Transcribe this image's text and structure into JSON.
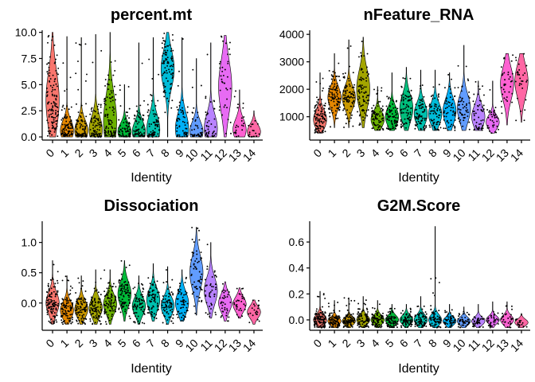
{
  "chart_data": [
    {
      "type": "violin",
      "title": "percent.mt",
      "xlabel": "Identity",
      "ylabel": "",
      "categories": [
        "0",
        "1",
        "2",
        "3",
        "4",
        "5",
        "6",
        "7",
        "8",
        "9",
        "10",
        "11",
        "12",
        "13",
        "14"
      ],
      "colors": [
        "#F8766D",
        "#E58700",
        "#C99800",
        "#A3A500",
        "#6BB100",
        "#00BA38",
        "#00BF7D",
        "#00C0AF",
        "#00BCD8",
        "#00B0F6",
        "#619CFF",
        "#B983FF",
        "#E76BF3",
        "#FD61D1",
        "#FF67A4"
      ],
      "ylim": [
        -0.3,
        10.2
      ],
      "yticks": [
        0.0,
        2.5,
        5.0,
        7.5,
        10.0
      ],
      "ytick_labels": [
        "0.0",
        "2.5",
        "5.0",
        "7.5",
        "10.0"
      ],
      "violins": [
        {
          "median": 3.5,
          "spread": 2.8,
          "min": 0.0,
          "max": 10.0,
          "n": 120
        },
        {
          "median": 0.6,
          "spread": 1.0,
          "min": 0.0,
          "max": 9.6,
          "n": 90
        },
        {
          "median": 0.6,
          "spread": 1.0,
          "min": 0.0,
          "max": 9.5,
          "n": 90
        },
        {
          "median": 0.7,
          "spread": 1.3,
          "min": 0.0,
          "max": 9.8,
          "n": 85
        },
        {
          "median": 1.5,
          "spread": 2.5,
          "min": 0.0,
          "max": 10.0,
          "n": 100
        },
        {
          "median": 0.5,
          "spread": 0.8,
          "min": 0.0,
          "max": 5.0,
          "n": 70
        },
        {
          "median": 0.5,
          "spread": 1.0,
          "min": 0.0,
          "max": 9.0,
          "n": 70
        },
        {
          "median": 0.7,
          "spread": 1.4,
          "min": 0.0,
          "max": 9.5,
          "n": 70
        },
        {
          "median": 6.5,
          "spread": 1.8,
          "min": 0.0,
          "max": 10.0,
          "n": 90
        },
        {
          "median": 0.8,
          "spread": 1.5,
          "min": 0.0,
          "max": 9.5,
          "n": 55
        },
        {
          "median": 0.5,
          "spread": 1.0,
          "min": 0.0,
          "max": 7.5,
          "n": 45
        },
        {
          "median": 0.8,
          "spread": 1.4,
          "min": 0.0,
          "max": 9.0,
          "n": 45
        },
        {
          "median": 4.8,
          "spread": 2.5,
          "min": 0.0,
          "max": 9.7,
          "n": 40
        },
        {
          "median": 0.7,
          "spread": 1.0,
          "min": 0.0,
          "max": 4.5,
          "n": 25
        },
        {
          "median": 0.5,
          "spread": 0.7,
          "min": 0.0,
          "max": 2.5,
          "n": 20
        }
      ]
    },
    {
      "type": "violin",
      "title": "nFeature_RNA",
      "xlabel": "Identity",
      "ylabel": "",
      "categories": [
        "0",
        "1",
        "2",
        "3",
        "4",
        "5",
        "6",
        "7",
        "8",
        "9",
        "10",
        "11",
        "12",
        "13",
        "14"
      ],
      "colors": [
        "#F8766D",
        "#E58700",
        "#C99800",
        "#A3A500",
        "#6BB100",
        "#00BA38",
        "#00BF7D",
        "#00C0AF",
        "#00BCD8",
        "#00B0F6",
        "#619CFF",
        "#B983FF",
        "#E76BF3",
        "#FD61D1",
        "#FF67A4"
      ],
      "ylim": [
        150,
        4150
      ],
      "yticks": [
        1000,
        2000,
        3000,
        4000
      ],
      "ytick_labels": [
        "1000",
        "2000",
        "3000",
        "4000"
      ],
      "violins": [
        {
          "median": 900,
          "spread": 350,
          "min": 400,
          "max": 2600,
          "n": 110
        },
        {
          "median": 1700,
          "spread": 400,
          "min": 600,
          "max": 3300,
          "n": 90
        },
        {
          "median": 1700,
          "spread": 400,
          "min": 600,
          "max": 3800,
          "n": 90
        },
        {
          "median": 2000,
          "spread": 700,
          "min": 600,
          "max": 3900,
          "n": 85
        },
        {
          "median": 900,
          "spread": 300,
          "min": 500,
          "max": 2100,
          "n": 80
        },
        {
          "median": 1000,
          "spread": 350,
          "min": 500,
          "max": 2600,
          "n": 75
        },
        {
          "median": 1300,
          "spread": 500,
          "min": 500,
          "max": 2800,
          "n": 75
        },
        {
          "median": 1100,
          "spread": 400,
          "min": 500,
          "max": 2700,
          "n": 70
        },
        {
          "median": 1100,
          "spread": 400,
          "min": 500,
          "max": 2700,
          "n": 70
        },
        {
          "median": 1200,
          "spread": 450,
          "min": 500,
          "max": 2600,
          "n": 60
        },
        {
          "median": 1300,
          "spread": 500,
          "min": 500,
          "max": 3600,
          "n": 55
        },
        {
          "median": 1000,
          "spread": 400,
          "min": 500,
          "max": 2300,
          "n": 50
        },
        {
          "median": 800,
          "spread": 250,
          "min": 400,
          "max": 2300,
          "n": 35
        },
        {
          "median": 2200,
          "spread": 600,
          "min": 700,
          "max": 3300,
          "n": 35
        },
        {
          "median": 2300,
          "spread": 600,
          "min": 800,
          "max": 3300,
          "n": 30
        }
      ]
    },
    {
      "type": "violin",
      "title": "Dissociation",
      "xlabel": "Identity",
      "ylabel": "",
      "categories": [
        "0",
        "1",
        "2",
        "3",
        "4",
        "5",
        "6",
        "7",
        "8",
        "9",
        "10",
        "11",
        "12",
        "13",
        "14"
      ],
      "colors": [
        "#F8766D",
        "#E58700",
        "#C99800",
        "#A3A500",
        "#6BB100",
        "#00BA38",
        "#00BF7D",
        "#00C0AF",
        "#00BCD8",
        "#00B0F6",
        "#619CFF",
        "#B983FF",
        "#E76BF3",
        "#FD61D1",
        "#FF67A4"
      ],
      "ylim": [
        -0.45,
        1.35
      ],
      "yticks": [
        0.0,
        0.5,
        1.0
      ],
      "ytick_labels": [
        "0.0",
        "0.5",
        "1.0"
      ],
      "violins": [
        {
          "median": 0.0,
          "spread": 0.18,
          "min": -0.35,
          "max": 0.7,
          "n": 110
        },
        {
          "median": -0.12,
          "spread": 0.14,
          "min": -0.35,
          "max": 0.45,
          "n": 90
        },
        {
          "median": -0.1,
          "spread": 0.14,
          "min": -0.35,
          "max": 0.45,
          "n": 90
        },
        {
          "median": -0.08,
          "spread": 0.15,
          "min": -0.35,
          "max": 0.55,
          "n": 85
        },
        {
          "median": -0.02,
          "spread": 0.16,
          "min": -0.35,
          "max": 0.55,
          "n": 85
        },
        {
          "median": 0.15,
          "spread": 0.2,
          "min": -0.3,
          "max": 0.7,
          "n": 80
        },
        {
          "median": -0.05,
          "spread": 0.15,
          "min": -0.35,
          "max": 0.45,
          "n": 70
        },
        {
          "median": 0.05,
          "spread": 0.18,
          "min": -0.3,
          "max": 0.65,
          "n": 70
        },
        {
          "median": -0.05,
          "spread": 0.15,
          "min": -0.35,
          "max": 0.6,
          "n": 70
        },
        {
          "median": 0.0,
          "spread": 0.18,
          "min": -0.3,
          "max": 0.55,
          "n": 55
        },
        {
          "median": 0.5,
          "spread": 0.28,
          "min": -0.2,
          "max": 1.25,
          "n": 60
        },
        {
          "median": 0.2,
          "spread": 0.22,
          "min": -0.25,
          "max": 1.0,
          "n": 45
        },
        {
          "median": 0.0,
          "spread": 0.15,
          "min": -0.3,
          "max": 0.35,
          "n": 35
        },
        {
          "median": -0.02,
          "spread": 0.12,
          "min": -0.25,
          "max": 0.25,
          "n": 30
        },
        {
          "median": -0.15,
          "spread": 0.1,
          "min": -0.35,
          "max": 0.05,
          "n": 20
        }
      ]
    },
    {
      "type": "violin",
      "title": "G2M.Score",
      "xlabel": "Identity",
      "ylabel": "",
      "categories": [
        "0",
        "1",
        "2",
        "3",
        "4",
        "5",
        "6",
        "7",
        "8",
        "9",
        "10",
        "11",
        "12",
        "13",
        "14"
      ],
      "colors": [
        "#F8766D",
        "#E58700",
        "#C99800",
        "#A3A500",
        "#6BB100",
        "#00BA38",
        "#00BF7D",
        "#00C0AF",
        "#00BCD8",
        "#00B0F6",
        "#619CFF",
        "#B983FF",
        "#E76BF3",
        "#FD61D1",
        "#FF67A4"
      ],
      "ylim": [
        -0.08,
        0.76
      ],
      "yticks": [
        0.0,
        0.2,
        0.4,
        0.6
      ],
      "ytick_labels": [
        "0.0",
        "0.2",
        "0.4",
        "0.6"
      ],
      "violins": [
        {
          "median": 0.0,
          "spread": 0.04,
          "min": -0.06,
          "max": 0.22,
          "n": 110
        },
        {
          "median": -0.01,
          "spread": 0.03,
          "min": -0.06,
          "max": 0.15,
          "n": 90
        },
        {
          "median": -0.01,
          "spread": 0.03,
          "min": -0.06,
          "max": 0.17,
          "n": 90
        },
        {
          "median": 0.0,
          "spread": 0.035,
          "min": -0.06,
          "max": 0.18,
          "n": 85
        },
        {
          "median": 0.0,
          "spread": 0.035,
          "min": -0.06,
          "max": 0.15,
          "n": 80
        },
        {
          "median": 0.0,
          "spread": 0.035,
          "min": -0.06,
          "max": 0.12,
          "n": 75
        },
        {
          "median": 0.0,
          "spread": 0.035,
          "min": -0.06,
          "max": 0.12,
          "n": 70
        },
        {
          "median": 0.0,
          "spread": 0.04,
          "min": -0.06,
          "max": 0.18,
          "n": 70
        },
        {
          "median": 0.0,
          "spread": 0.04,
          "min": -0.06,
          "max": 0.72,
          "n": 70
        },
        {
          "median": -0.01,
          "spread": 0.03,
          "min": -0.06,
          "max": 0.12,
          "n": 55
        },
        {
          "median": -0.01,
          "spread": 0.03,
          "min": -0.06,
          "max": 0.1,
          "n": 45
        },
        {
          "median": -0.01,
          "spread": 0.03,
          "min": -0.06,
          "max": 0.12,
          "n": 40
        },
        {
          "median": 0.0,
          "spread": 0.03,
          "min": -0.06,
          "max": 0.14,
          "n": 35
        },
        {
          "median": 0.0,
          "spread": 0.035,
          "min": -0.06,
          "max": 0.14,
          "n": 30
        },
        {
          "median": -0.02,
          "spread": 0.025,
          "min": -0.06,
          "max": 0.05,
          "n": 20
        }
      ]
    }
  ]
}
